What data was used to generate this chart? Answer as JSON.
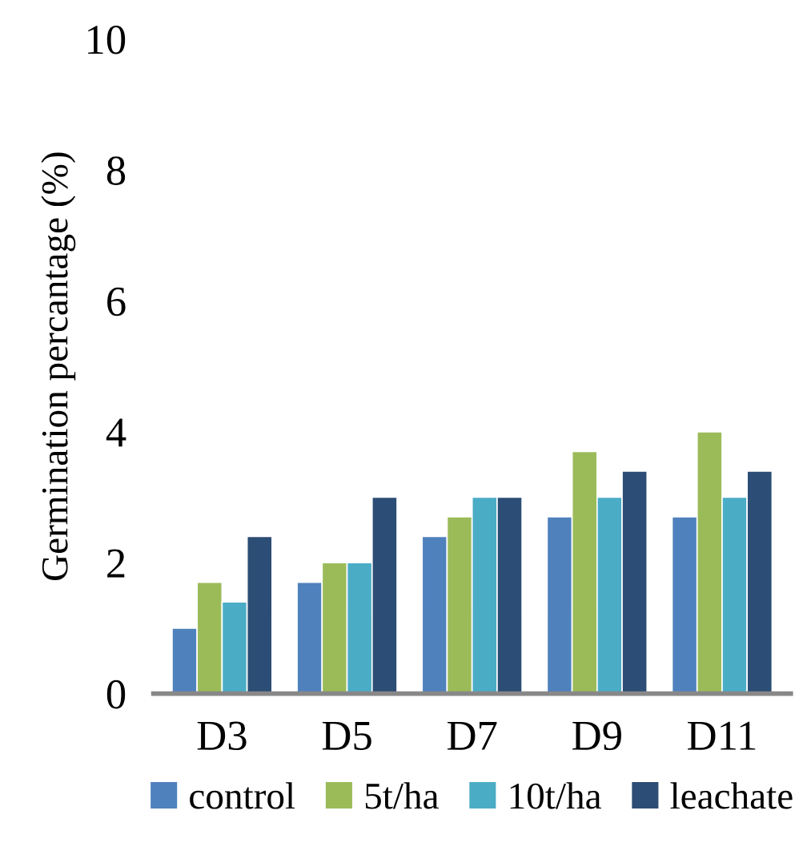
{
  "chart_data": {
    "type": "bar",
    "ylabel": "Germination percantage (%)",
    "categories": [
      "D3",
      "D5",
      "D7",
      "D9",
      "D11"
    ],
    "series": [
      {
        "name": "control",
        "color": "#4f81bd",
        "values": [
          1.0,
          1.7,
          2.4,
          2.7,
          2.7
        ]
      },
      {
        "name": "5t/ha",
        "color": "#9bbb59",
        "values": [
          1.7,
          2.0,
          2.7,
          3.7,
          4.0
        ]
      },
      {
        "name": "10t/ha",
        "color": "#4bacc6",
        "values": [
          1.4,
          2.0,
          3.0,
          3.0,
          3.0
        ]
      },
      {
        "name": "leachate",
        "color": "#2c4d75",
        "values": [
          2.4,
          3.0,
          3.0,
          3.4,
          3.4
        ]
      }
    ],
    "ylim": [
      0,
      10
    ],
    "yticks": [
      0,
      2,
      4,
      6,
      8,
      10
    ],
    "grid": false,
    "legend": "bottom"
  }
}
